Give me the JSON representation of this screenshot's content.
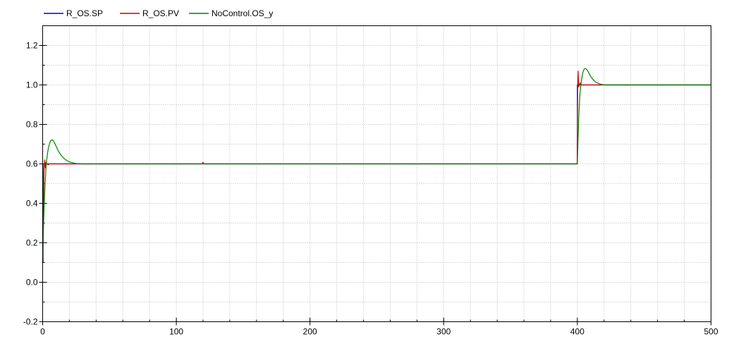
{
  "chart_data": {
    "type": "line",
    "title": "",
    "xlabel": "",
    "ylabel": "",
    "xlim": [
      0,
      500
    ],
    "ylim": [
      -0.2,
      1.3
    ],
    "x_ticks": [
      0,
      100,
      200,
      300,
      400,
      500
    ],
    "x_minor_step": 20,
    "y_ticks": [
      -0.2,
      0.0,
      0.2,
      0.4,
      0.6,
      0.8,
      1.0,
      1.2
    ],
    "y_minor_step": 0.1,
    "grid": "dotted",
    "legend_position": "top-left",
    "series": [
      {
        "name": "R_OS.SP",
        "color": "#0000cc",
        "x": [
          0,
          0.3,
          0.3,
          400,
          400,
          500
        ],
        "y": [
          0.1,
          0.1,
          0.6,
          0.6,
          1.0,
          1.0
        ]
      },
      {
        "name": "R_OS.PV",
        "color": "#cc0000",
        "x": [
          0,
          0.5,
          1,
          1.5,
          2,
          2.5,
          3,
          3.5,
          4,
          5,
          6,
          8,
          10,
          15,
          30,
          119.5,
          120,
          120.5,
          121,
          300,
          399.9,
          400,
          400.3,
          400.6,
          401,
          401.5,
          402,
          403,
          405,
          410,
          428,
          500
        ],
        "y": [
          0.1,
          0.3,
          0.55,
          0.62,
          0.58,
          0.61,
          0.6,
          0.6,
          0.595,
          0.6,
          0.6,
          0.6,
          0.6,
          0.6,
          0.6,
          0.6,
          0.608,
          0.6,
          0.6,
          0.6,
          0.6,
          0.68,
          1.0,
          1.07,
          0.99,
          1.0,
          1.01,
          1.0,
          1.0,
          1.0,
          1.0,
          1.0
        ]
      },
      {
        "name": "NoControl.OS_y",
        "color": "#008000",
        "x": [
          0,
          0.5,
          1,
          1.5,
          2,
          2.5,
          3,
          4,
          5,
          6,
          7,
          8,
          9,
          10,
          11,
          12,
          14,
          16,
          18,
          20,
          22,
          25,
          30,
          100,
          200,
          300,
          399.8,
          400,
          400.5,
          401,
          401.5,
          402,
          403,
          404,
          405,
          406,
          407,
          408,
          409,
          410,
          412,
          414,
          416,
          418,
          420,
          423,
          428,
          500
        ],
        "y": [
          0.1,
          0.25,
          0.36,
          0.45,
          0.52,
          0.58,
          0.62,
          0.67,
          0.7,
          0.718,
          0.722,
          0.717,
          0.705,
          0.69,
          0.675,
          0.662,
          0.642,
          0.627,
          0.617,
          0.61,
          0.606,
          0.602,
          0.6,
          0.6,
          0.6,
          0.6,
          0.6,
          0.6,
          0.72,
          0.83,
          0.9,
          0.96,
          1.02,
          1.06,
          1.08,
          1.083,
          1.078,
          1.068,
          1.055,
          1.043,
          1.025,
          1.013,
          1.007,
          1.003,
          1.001,
          1.0,
          1.0,
          1.0
        ]
      }
    ]
  }
}
